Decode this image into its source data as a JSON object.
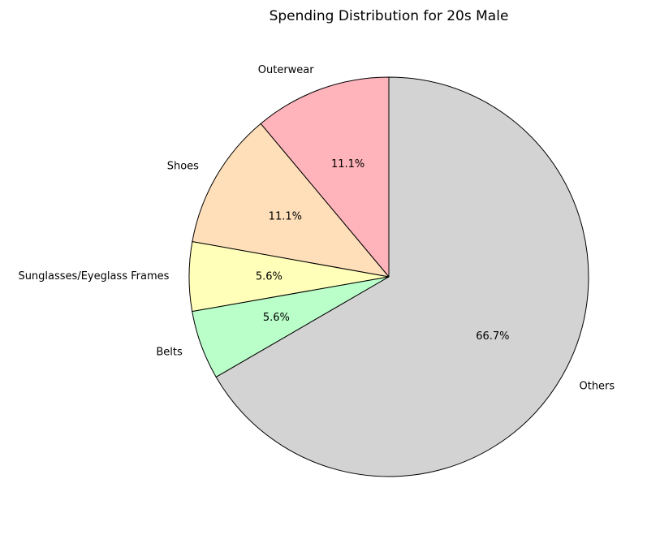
{
  "chart_data": {
    "type": "pie",
    "title": "Spending Distribution for 20s Male",
    "start_angle": 90,
    "direction": "counterclockwise",
    "slices": [
      {
        "label": "Outerwear",
        "value": 11.1,
        "pct_label": "11.1%",
        "color": "#ffb3ba"
      },
      {
        "label": "Shoes",
        "value": 11.1,
        "pct_label": "11.1%",
        "color": "#ffdfba"
      },
      {
        "label": "Sunglasses/Eyeglass Frames",
        "value": 5.6,
        "pct_label": "5.6%",
        "color": "#ffffba"
      },
      {
        "label": "Belts",
        "value": 5.6,
        "pct_label": "5.6%",
        "color": "#baffc9"
      },
      {
        "label": "Others",
        "value": 66.7,
        "pct_label": "66.7%",
        "color": "#d3d3d3"
      }
    ]
  }
}
